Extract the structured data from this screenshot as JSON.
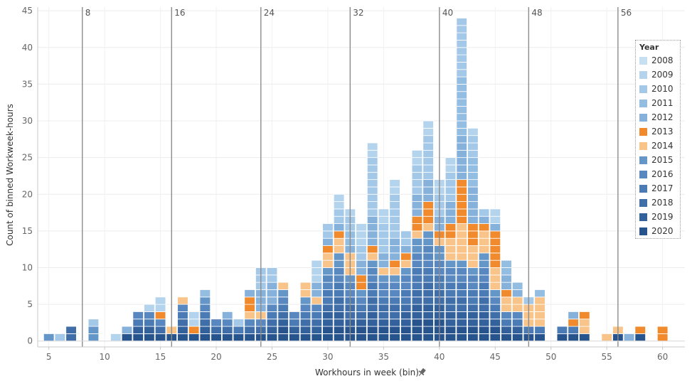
{
  "chart_data": {
    "type": "bar",
    "stacked": true,
    "xlabel": "Workhours in week (bin)",
    "ylabel": "Count of binned Workweek-hours",
    "xlim": [
      4,
      62
    ],
    "ylim": [
      -0.8,
      45.5
    ],
    "x_ticks": [
      5,
      10,
      15,
      20,
      25,
      30,
      35,
      40,
      45,
      50,
      55,
      60
    ],
    "y_ticks": [
      0,
      5,
      10,
      15,
      20,
      25,
      30,
      35,
      40,
      45
    ],
    "reference_lines": [
      {
        "x": 8,
        "label": "8"
      },
      {
        "x": 16,
        "label": "16"
      },
      {
        "x": 24,
        "label": "24"
      },
      {
        "x": 32,
        "label": "32"
      },
      {
        "x": 40,
        "label": "40"
      },
      {
        "x": 48,
        "label": "48"
      },
      {
        "x": 56,
        "label": "56"
      }
    ],
    "legend_title": "Year",
    "years": [
      "2008",
      "2009",
      "2010",
      "2011",
      "2012",
      "2013",
      "2014",
      "2015",
      "2016",
      "2017",
      "2018",
      "2019",
      "2020"
    ],
    "year_colors": {
      "2008": "#c6e0f2",
      "2009": "#b4d4ee",
      "2010": "#a3c8e8",
      "2011": "#94bde2",
      "2012": "#86b1db",
      "2013": "#f08a2c",
      "2014": "#f9c48a",
      "2015": "#6596c8",
      "2016": "#5888bf",
      "2017": "#4b7bb4",
      "2018": "#3f6ea8",
      "2019": "#33619b",
      "2020": "#28548e"
    },
    "bins": [
      {
        "x": 5,
        "total": 1,
        "top": [
          [
            "2015",
            1
          ]
        ]
      },
      {
        "x": 6,
        "total": 1,
        "top": [
          [
            "2010",
            1
          ]
        ]
      },
      {
        "x": 7,
        "total": 2,
        "top": [
          [
            "2018",
            2
          ]
        ]
      },
      {
        "x": 9,
        "total": 3,
        "top": [
          [
            "2010",
            1
          ],
          [
            "2015",
            2
          ]
        ]
      },
      {
        "x": 11,
        "total": 1,
        "top": [
          [
            "2009",
            1
          ]
        ]
      },
      {
        "x": 12,
        "total": 2,
        "top": [
          [
            "2012",
            1
          ]
        ]
      },
      {
        "x": 13,
        "total": 4,
        "top": []
      },
      {
        "x": 14,
        "total": 5,
        "top": [
          [
            "2009",
            1
          ]
        ]
      },
      {
        "x": 15,
        "total": 6,
        "top": [
          [
            "2009",
            2
          ],
          [
            "2013",
            1
          ]
        ]
      },
      {
        "x": 16,
        "total": 2,
        "top": [
          [
            "2014",
            1
          ]
        ]
      },
      {
        "x": 17,
        "total": 6,
        "top": [
          [
            "2014",
            1
          ]
        ]
      },
      {
        "x": 18,
        "total": 4,
        "top": [
          [
            "2009",
            2
          ],
          [
            "2013",
            1
          ]
        ]
      },
      {
        "x": 19,
        "total": 7,
        "top": [
          [
            "2011",
            1
          ]
        ]
      },
      {
        "x": 20,
        "total": 3,
        "top": []
      },
      {
        "x": 21,
        "total": 4,
        "top": [
          [
            "2012",
            1
          ]
        ]
      },
      {
        "x": 22,
        "total": 3,
        "top": [
          [
            "2010",
            1
          ]
        ]
      },
      {
        "x": 23,
        "total": 7,
        "top": [
          [
            "2012",
            1
          ],
          [
            "2013",
            2
          ],
          [
            "2014",
            1
          ]
        ]
      },
      {
        "x": 24,
        "total": 10,
        "top": [
          [
            "2010",
            3
          ],
          [
            "2012",
            3
          ],
          [
            "2014",
            1
          ]
        ]
      },
      {
        "x": 25,
        "total": 10,
        "top": [
          [
            "2010",
            2
          ],
          [
            "2012",
            3
          ]
        ]
      },
      {
        "x": 26,
        "total": 8,
        "top": [
          [
            "2014",
            1
          ]
        ]
      },
      {
        "x": 27,
        "total": 4,
        "top": []
      },
      {
        "x": 28,
        "total": 8,
        "top": [
          [
            "2014",
            2
          ]
        ]
      },
      {
        "x": 29,
        "total": 11,
        "top": [
          [
            "2009",
            3
          ],
          [
            "2012",
            2
          ],
          [
            "2014",
            1
          ]
        ]
      },
      {
        "x": 30,
        "total": 16,
        "top": [
          [
            "2010",
            2
          ],
          [
            "2012",
            1
          ],
          [
            "2013",
            1
          ],
          [
            "2014",
            2
          ]
        ]
      },
      {
        "x": 31,
        "total": 20,
        "top": [
          [
            "2009",
            2
          ],
          [
            "2010",
            2
          ],
          [
            "2012",
            1
          ],
          [
            "2013",
            1
          ],
          [
            "2014",
            2
          ]
        ]
      },
      {
        "x": 32,
        "total": 18,
        "top": [
          [
            "2009",
            1
          ],
          [
            "2010",
            2
          ],
          [
            "2011",
            2
          ],
          [
            "2012",
            1
          ],
          [
            "2014",
            3
          ]
        ]
      },
      {
        "x": 33,
        "total": 16,
        "top": [
          [
            "2009",
            3
          ],
          [
            "2010",
            2
          ],
          [
            "2012",
            2
          ],
          [
            "2013",
            2
          ]
        ]
      },
      {
        "x": 34,
        "total": 27,
        "top": [
          [
            "2009",
            2
          ],
          [
            "2010",
            8
          ],
          [
            "2012",
            4
          ],
          [
            "2013",
            1
          ],
          [
            "2014",
            1
          ]
        ]
      },
      {
        "x": 35,
        "total": 18,
        "top": [
          [
            "2009",
            2
          ],
          [
            "2010",
            4
          ],
          [
            "2012",
            2
          ],
          [
            "2014",
            1
          ]
        ]
      },
      {
        "x": 36,
        "total": 22,
        "top": [
          [
            "2009",
            2
          ],
          [
            "2010",
            6
          ],
          [
            "2012",
            3
          ],
          [
            "2013",
            1
          ],
          [
            "2014",
            1
          ]
        ]
      },
      {
        "x": 37,
        "total": 15,
        "top": [
          [
            "2010",
            2
          ],
          [
            "2012",
            1
          ],
          [
            "2013",
            1
          ],
          [
            "2014",
            1
          ]
        ]
      },
      {
        "x": 38,
        "total": 26,
        "top": [
          [
            "2009",
            2
          ],
          [
            "2010",
            4
          ],
          [
            "2012",
            3
          ],
          [
            "2013",
            2
          ],
          [
            "2014",
            1
          ]
        ]
      },
      {
        "x": 39,
        "total": 30,
        "top": [
          [
            "2009",
            2
          ],
          [
            "2010",
            6
          ],
          [
            "2012",
            3
          ],
          [
            "2013",
            3
          ],
          [
            "2014",
            1
          ]
        ]
      },
      {
        "x": 40,
        "total": 22,
        "top": [
          [
            "2009",
            2
          ],
          [
            "2010",
            3
          ],
          [
            "2012",
            2
          ],
          [
            "2013",
            1
          ],
          [
            "2014",
            1
          ]
        ]
      },
      {
        "x": 41,
        "total": 25,
        "top": [
          [
            "2009",
            2
          ],
          [
            "2010",
            4
          ],
          [
            "2012",
            3
          ],
          [
            "2013",
            2
          ],
          [
            "2014",
            3
          ]
        ]
      },
      {
        "x": 42,
        "total": 44,
        "top": [
          [
            "2010",
            8
          ],
          [
            "2011",
            8
          ],
          [
            "2012",
            6
          ],
          [
            "2013",
            6
          ],
          [
            "2014",
            5
          ]
        ]
      },
      {
        "x": 43,
        "total": 29,
        "top": [
          [
            "2009",
            1
          ],
          [
            "2010",
            3
          ],
          [
            "2011",
            4
          ],
          [
            "2012",
            5
          ],
          [
            "2013",
            3
          ],
          [
            "2014",
            3
          ]
        ]
      },
      {
        "x": 44,
        "total": 18,
        "top": [
          [
            "2010",
            1
          ],
          [
            "2012",
            1
          ],
          [
            "2013",
            1
          ],
          [
            "2014",
            3
          ]
        ]
      },
      {
        "x": 45,
        "total": 18,
        "top": [
          [
            "2009",
            2
          ],
          [
            "2012",
            1
          ],
          [
            "2013",
            5
          ],
          [
            "2014",
            3
          ]
        ]
      },
      {
        "x": 46,
        "total": 11,
        "top": [
          [
            "2011",
            2
          ],
          [
            "2012",
            2
          ],
          [
            "2013",
            1
          ],
          [
            "2014",
            2
          ]
        ]
      },
      {
        "x": 47,
        "total": 8,
        "top": [
          [
            "2011",
            1
          ],
          [
            "2012",
            1
          ],
          [
            "2014",
            2
          ]
        ]
      },
      {
        "x": 48,
        "total": 6,
        "top": [
          [
            "2010",
            1
          ],
          [
            "2014",
            3
          ]
        ]
      },
      {
        "x": 49,
        "total": 7,
        "top": [
          [
            "2011",
            1
          ],
          [
            "2014",
            4
          ]
        ]
      },
      {
        "x": 51,
        "total": 2,
        "top": []
      },
      {
        "x": 52,
        "total": 4,
        "top": [
          [
            "2012",
            1
          ],
          [
            "2013",
            1
          ]
        ]
      },
      {
        "x": 53,
        "total": 4,
        "top": [
          [
            "2013",
            1
          ],
          [
            "2014",
            2
          ]
        ]
      },
      {
        "x": 55,
        "total": 1,
        "top": [
          [
            "2014",
            1
          ]
        ]
      },
      {
        "x": 56,
        "total": 2,
        "top": [
          [
            "2014",
            1
          ]
        ]
      },
      {
        "x": 57,
        "total": 1,
        "top": [
          [
            "2012",
            1
          ]
        ]
      },
      {
        "x": 58,
        "total": 2,
        "top": [
          [
            "2013",
            1
          ]
        ]
      },
      {
        "x": 60,
        "total": 2,
        "top": [
          [
            "2013",
            2
          ]
        ]
      }
    ]
  }
}
